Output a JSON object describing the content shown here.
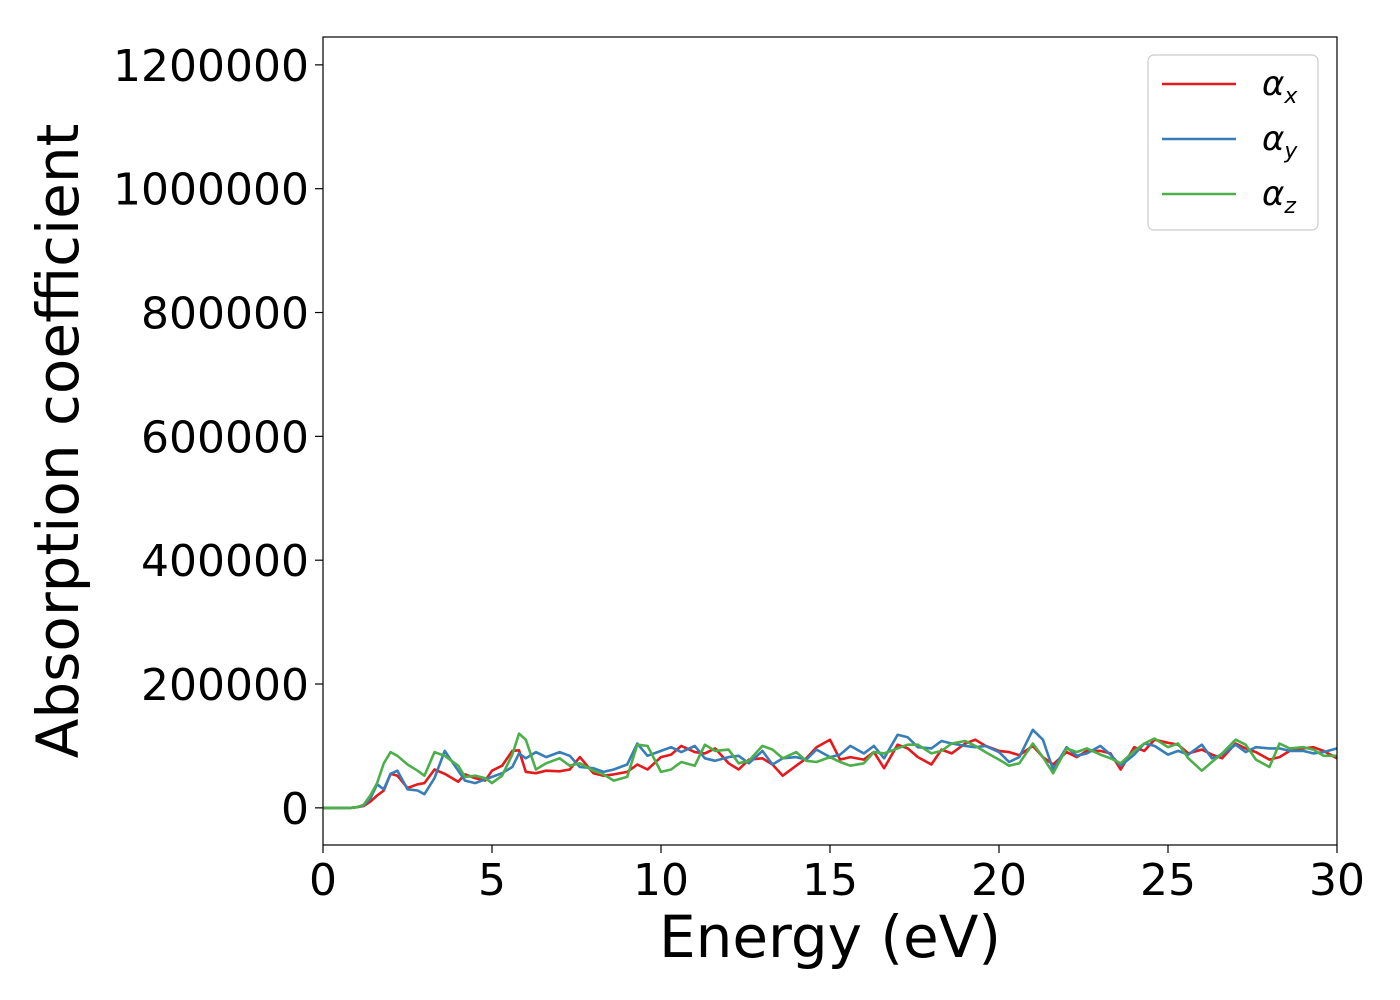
{
  "chart_data": {
    "type": "line",
    "title": "",
    "xlabel": "Energy (eV)",
    "ylabel": "Absorption coefficient",
    "xlim": [
      0,
      30
    ],
    "ylim": [
      -60000,
      1245000
    ],
    "xticks": [
      0,
      5,
      10,
      15,
      20,
      25,
      30
    ],
    "yticks": [
      0,
      200000,
      400000,
      600000,
      800000,
      1000000,
      1200000
    ],
    "xtick_labels": [
      "0",
      "5",
      "10",
      "15",
      "20",
      "25",
      "30"
    ],
    "ytick_labels": [
      "0",
      "200000",
      "400000",
      "600000",
      "800000",
      "1000000",
      "1200000"
    ],
    "grid": false,
    "legend_position": "top-right",
    "x": [
      0.0,
      0.4,
      0.8,
      1.0,
      1.2,
      1.4,
      1.6,
      1.8,
      2.0,
      2.2,
      2.5,
      2.8,
      3.0,
      3.3,
      3.6,
      4.0,
      4.2,
      4.5,
      4.8,
      5.0,
      5.3,
      5.6,
      5.8,
      6.0,
      6.3,
      6.6,
      7.0,
      7.3,
      7.6,
      8.0,
      8.3,
      8.6,
      9.0,
      9.3,
      9.6,
      10.0,
      10.3,
      10.6,
      11.0,
      11.3,
      11.6,
      12.0,
      12.3,
      12.6,
      13.0,
      13.3,
      13.6,
      14.0,
      14.3,
      14.6,
      15.0,
      15.3,
      15.6,
      16.0,
      16.3,
      16.6,
      17.0,
      17.3,
      17.6,
      18.0,
      18.3,
      18.6,
      19.0,
      19.3,
      19.6,
      20.0,
      20.3,
      20.6,
      21.0,
      21.3,
      21.6,
      22.0,
      22.3,
      22.6,
      23.0,
      23.3,
      23.6,
      24.0,
      24.3,
      24.6,
      25.0,
      25.3,
      25.6,
      26.0,
      26.3,
      26.6,
      27.0,
      27.3,
      27.6,
      28.0,
      28.3,
      28.6,
      29.0,
      29.3,
      29.6,
      30.0
    ],
    "series": [
      {
        "name": "α",
        "subscript": "x",
        "color": "#e41a1c",
        "values": [
          0,
          0,
          0,
          1000,
          3000,
          10000,
          20000,
          28000,
          55000,
          52000,
          32000,
          38000,
          40000,
          62000,
          55000,
          42000,
          54000,
          48000,
          44000,
          60000,
          68000,
          92000,
          93000,
          58000,
          56000,
          60000,
          59000,
          62000,
          82000,
          56000,
          52000,
          54000,
          58000,
          70000,
          62000,
          82000,
          86000,
          100000,
          90000,
          88000,
          96000,
          72000,
          62000,
          78000,
          80000,
          70000,
          52000,
          68000,
          80000,
          98000,
          110000,
          78000,
          82000,
          78000,
          90000,
          64000,
          102000,
          96000,
          82000,
          70000,
          94000,
          88000,
          104000,
          110000,
          100000,
          92000,
          90000,
          85000,
          100000,
          82000,
          70000,
          90000,
          82000,
          92000,
          92000,
          88000,
          62000,
          98000,
          92000,
          110000,
          105000,
          102000,
          88000,
          94000,
          86000,
          80000,
          104000,
          96000,
          90000,
          78000,
          82000,
          92000,
          96000,
          98000,
          92000,
          80000
        ]
      },
      {
        "name": "α",
        "subscript": "y",
        "color": "#377eb8",
        "values": [
          0,
          0,
          0,
          1000,
          4000,
          15000,
          38000,
          30000,
          55000,
          60000,
          30000,
          28000,
          22000,
          48000,
          92000,
          60000,
          44000,
          40000,
          46000,
          50000,
          56000,
          66000,
          88000,
          80000,
          90000,
          82000,
          90000,
          84000,
          66000,
          64000,
          58000,
          62000,
          70000,
          104000,
          84000,
          92000,
          98000,
          90000,
          100000,
          80000,
          76000,
          82000,
          84000,
          72000,
          92000,
          70000,
          80000,
          82000,
          78000,
          94000,
          82000,
          86000,
          100000,
          88000,
          100000,
          80000,
          118000,
          114000,
          98000,
          96000,
          108000,
          104000,
          100000,
          98000,
          100000,
          90000,
          74000,
          82000,
          126000,
          110000,
          62000,
          98000,
          84000,
          88000,
          100000,
          86000,
          68000,
          86000,
          104000,
          100000,
          86000,
          92000,
          86000,
          102000,
          80000,
          86000,
          102000,
          90000,
          98000,
          96000,
          96000,
          92000,
          92000,
          88000,
          90000,
          96000
        ]
      },
      {
        "name": "α",
        "subscript": "z",
        "color": "#4daf4a",
        "values": [
          0,
          0,
          0,
          1000,
          5000,
          20000,
          40000,
          72000,
          90000,
          84000,
          70000,
          60000,
          52000,
          90000,
          84000,
          68000,
          50000,
          52000,
          48000,
          40000,
          52000,
          86000,
          120000,
          110000,
          62000,
          72000,
          80000,
          68000,
          72000,
          60000,
          54000,
          44000,
          50000,
          102000,
          100000,
          58000,
          62000,
          74000,
          68000,
          102000,
          92000,
          94000,
          72000,
          76000,
          100000,
          94000,
          80000,
          90000,
          76000,
          74000,
          82000,
          74000,
          68000,
          72000,
          90000,
          88000,
          96000,
          102000,
          102000,
          88000,
          92000,
          104000,
          108000,
          100000,
          90000,
          78000,
          68000,
          72000,
          104000,
          82000,
          56000,
          96000,
          90000,
          96000,
          86000,
          80000,
          72000,
          92000,
          104000,
          112000,
          98000,
          104000,
          80000,
          60000,
          74000,
          88000,
          110000,
          102000,
          78000,
          66000,
          104000,
          96000,
          98000,
          94000,
          84000,
          84000
        ]
      }
    ]
  }
}
